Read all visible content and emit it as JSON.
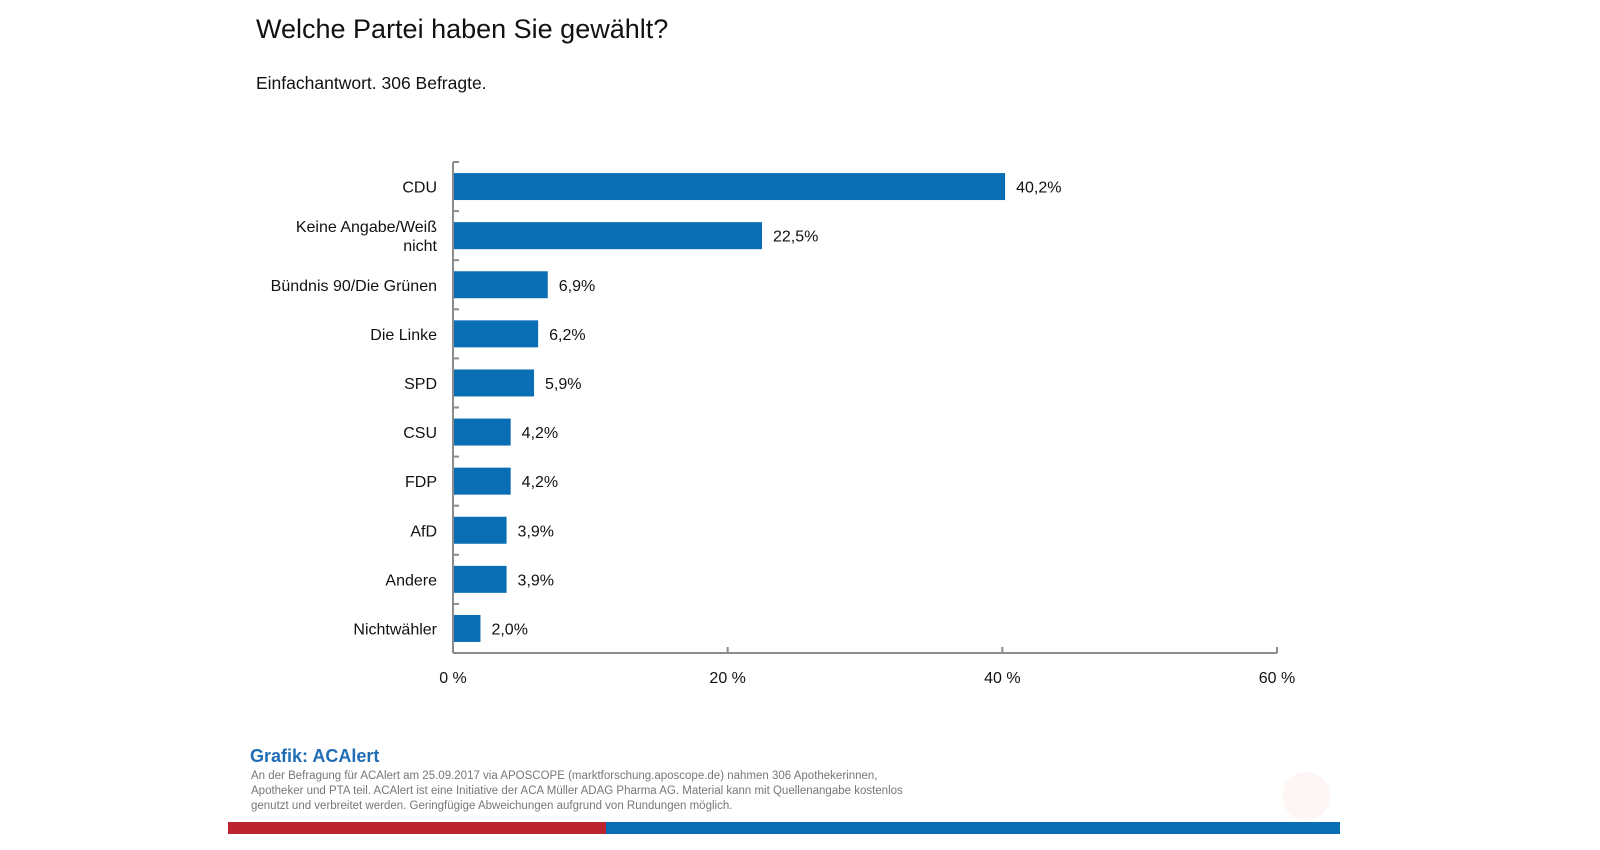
{
  "header": {
    "title": "Welche Partei haben Sie gewählt?",
    "subtitle": "Einfachantwort. 306 Befragte."
  },
  "chart_data": {
    "type": "bar",
    "orientation": "horizontal",
    "title": "Welche Partei haben Sie gewählt?",
    "subtitle": "Einfachantwort. 306 Befragte.",
    "categories": [
      [
        "CDU"
      ],
      [
        "Keine Angabe/Weiß",
        "nicht"
      ],
      [
        "Bündnis 90/Die Grünen"
      ],
      [
        "Die Linke"
      ],
      [
        "SPD"
      ],
      [
        "CSU"
      ],
      [
        "FDP"
      ],
      [
        "AfD"
      ],
      [
        "Andere"
      ],
      [
        "Nichtwähler"
      ]
    ],
    "values": [
      40.2,
      22.5,
      6.9,
      6.2,
      5.9,
      4.2,
      4.2,
      3.9,
      3.9,
      2.0
    ],
    "value_labels": [
      "40,2%",
      "22,5%",
      "6,9%",
      "6,2%",
      "5,9%",
      "4,2%",
      "4,2%",
      "3,9%",
      "3,9%",
      "2,0%"
    ],
    "xlabel": "",
    "ylabel": "",
    "xlim": [
      0,
      60
    ],
    "xticks": [
      0,
      20,
      40,
      60
    ],
    "xtick_labels": [
      "0 %",
      "20 %",
      "40 %",
      "60 %"
    ],
    "grid": false,
    "legend": "none",
    "bar_color": "#0a6eb4"
  },
  "footer": {
    "source_title": "Grafik: ACAlert",
    "source_text": "An der Befragung für ACAlert am 25.09.2017 via APOSCOPE (marktforschung.aposcope.de) nahmen 306 Apothekerinnen, Apotheker und PTA teil. ACAlert ist eine Initiative der ACA Müller ADAG Pharma AG. Material kann mit Quellenangabe kostenlos genutzt und verbreitet werden. Geringfügige Abweichungen aufgrund von Rundungen möglich.",
    "accent_red": "#bb2330",
    "accent_blue": "#0a6eb4"
  }
}
